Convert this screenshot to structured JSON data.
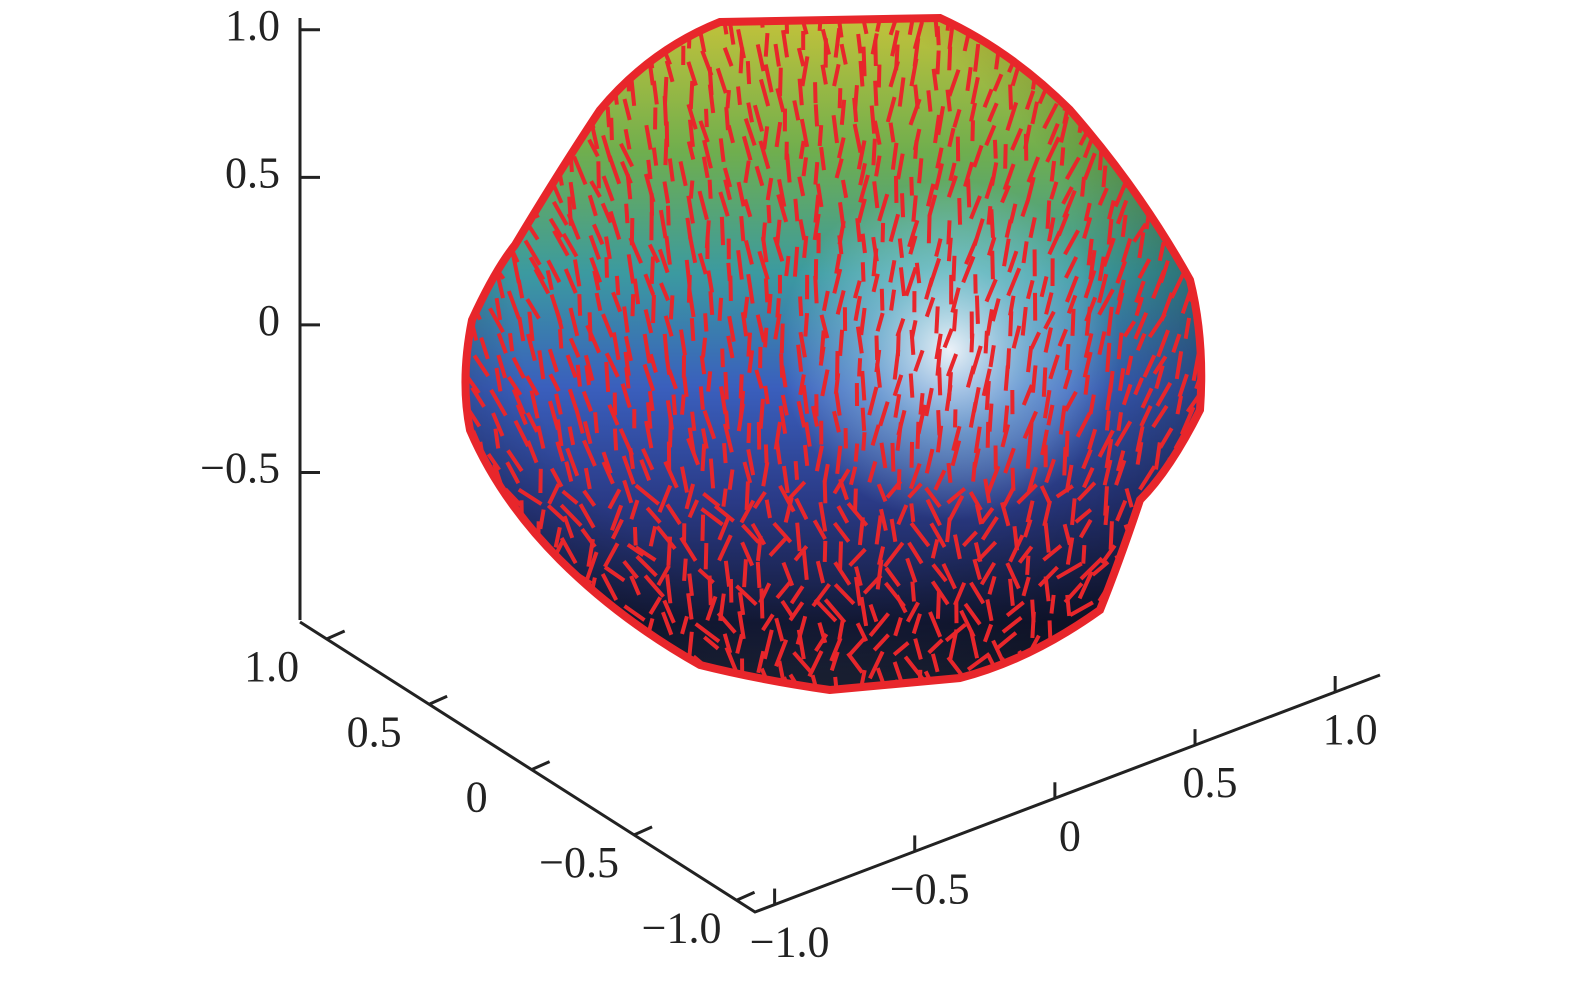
{
  "chart_data": {
    "type": "surface3d",
    "zlim": [
      -1.0,
      1.04
    ],
    "zticks": [
      {
        "value": -0.5,
        "label": "−0.5"
      },
      0,
      0.5,
      {
        "value": 1,
        "label": "1.0"
      }
    ],
    "xlim": [
      1.13,
      -1.09
    ],
    "xticks": [
      {
        "value": 1,
        "label": "1.0"
      },
      0.5,
      0,
      {
        "value": -0.5,
        "label": "−0.5"
      },
      {
        "value": -1,
        "label": "−1.0"
      }
    ],
    "ylim": [
      -1.07,
      1.16
    ],
    "yticks": [
      {
        "value": -1,
        "label": "−1.0"
      },
      {
        "value": -0.5,
        "label": "−0.5"
      },
      0,
      0.5,
      {
        "value": 1,
        "label": "1.0"
      }
    ],
    "vector_color": "#e8262b"
  }
}
